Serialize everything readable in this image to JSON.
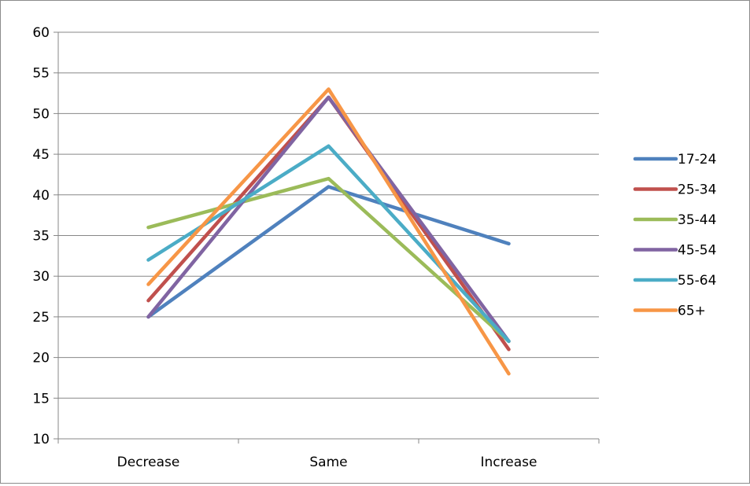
{
  "chart_data": {
    "type": "line",
    "categories": [
      "Decrease",
      "Same",
      "Increase"
    ],
    "series": [
      {
        "name": "17-24",
        "values": [
          25,
          41,
          34
        ],
        "color": "#4F81BD"
      },
      {
        "name": "25-34",
        "values": [
          27,
          52,
          21
        ],
        "color": "#C0504D"
      },
      {
        "name": "35-44",
        "values": [
          36,
          42,
          22
        ],
        "color": "#9BBB59"
      },
      {
        "name": "45-54",
        "values": [
          25,
          52,
          22
        ],
        "color": "#8064A2"
      },
      {
        "name": "55-64",
        "values": [
          32,
          46,
          22
        ],
        "color": "#4BACC6"
      },
      {
        "name": "65+",
        "values": [
          29,
          53,
          18
        ],
        "color": "#F79646"
      }
    ],
    "ylim": [
      10,
      60
    ],
    "yticks": [
      "10",
      "15",
      "20",
      "25",
      "30",
      "35",
      "40",
      "45",
      "50",
      "55",
      "60"
    ],
    "grid": true,
    "legend": "right",
    "title": "",
    "xlabel": "",
    "ylabel": ""
  }
}
